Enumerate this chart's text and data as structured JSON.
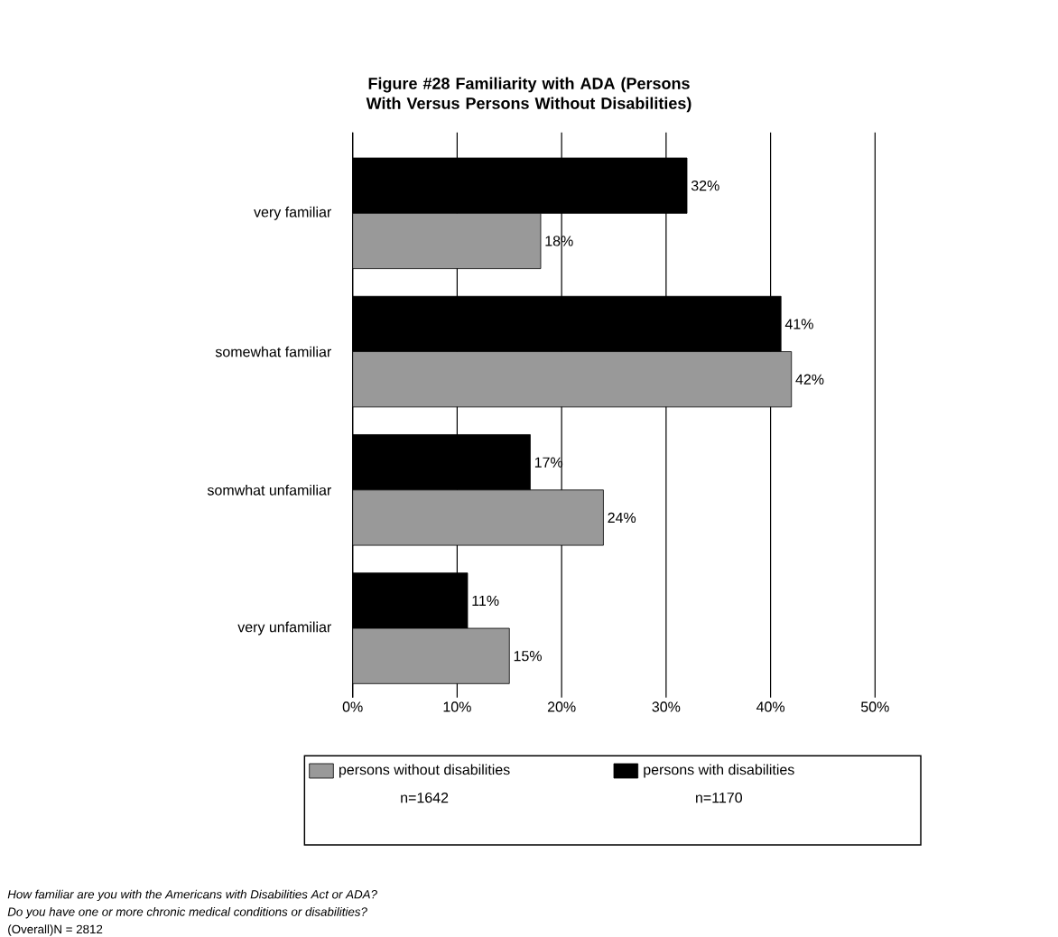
{
  "chart_data": {
    "type": "bar",
    "orientation": "horizontal",
    "title": "Figure #28 Familiarity with ADA (Persons With Versus Persons Without Disabilities)",
    "categories": [
      "very familiar",
      "somewhat familiar",
      "somwhat unfamiliar",
      "very unfamiliar"
    ],
    "series": [
      {
        "name": "persons with disabilities",
        "color": "#000000",
        "values": [
          32,
          41,
          17,
          11
        ],
        "value_labels": [
          "32%",
          "41%",
          "17%",
          "11%"
        ]
      },
      {
        "name": "persons without disabilities",
        "color": "#999999",
        "values": [
          18,
          42,
          24,
          15
        ],
        "value_labels": [
          "18%",
          "42%",
          "24%",
          "15%"
        ]
      }
    ],
    "xlim": [
      0,
      50
    ],
    "xticks": [
      {
        "value": 0,
        "label": "0%"
      },
      {
        "value": 10,
        "label": "10%"
      },
      {
        "value": 20,
        "label": "20%"
      },
      {
        "value": 30,
        "label": "30%"
      },
      {
        "value": 40,
        "label": "40%"
      },
      {
        "value": 50,
        "label": "50%"
      }
    ],
    "grid": "x",
    "legend": "bottom",
    "annotations": [
      "n=1170",
      "n=1642",
      "How familiar are you with the Americans with Disabilities Act or ADA?",
      "Do you have one or more chronic medical conditions or disabilities?",
      "(Overall)N = 2812"
    ]
  }
}
